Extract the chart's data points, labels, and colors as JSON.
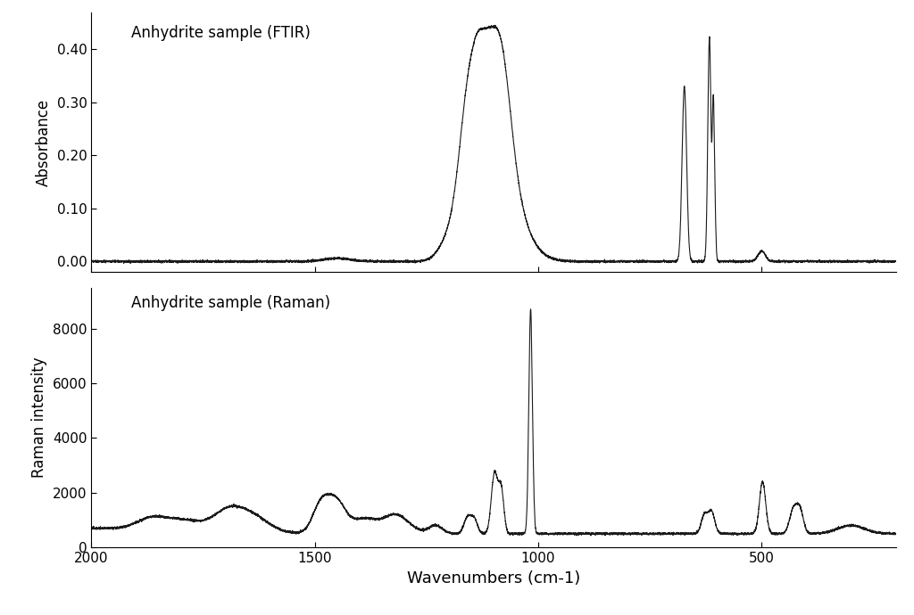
{
  "title_ftir": "Anhydrite sample (FTIR)",
  "title_raman": "Anhydrite sample (Raman)",
  "ylabel_ftir": "Absorbance",
  "ylabel_raman": "Raman intensity",
  "xlabel": "Wavenumbers (cm-1)",
  "xlim": [
    2000,
    200
  ],
  "ftir_ylim": [
    -0.02,
    0.47
  ],
  "raman_ylim": [
    200,
    9500
  ],
  "ftir_yticks": [
    0.0,
    0.1,
    0.2,
    0.3,
    0.4
  ],
  "raman_yticks": [
    0,
    2000,
    4000,
    6000,
    8000
  ],
  "xticks": [
    2000,
    1500,
    1000,
    500
  ],
  "background_color": "#ffffff",
  "line_color": "#1a1a1a",
  "line_width": 0.8
}
